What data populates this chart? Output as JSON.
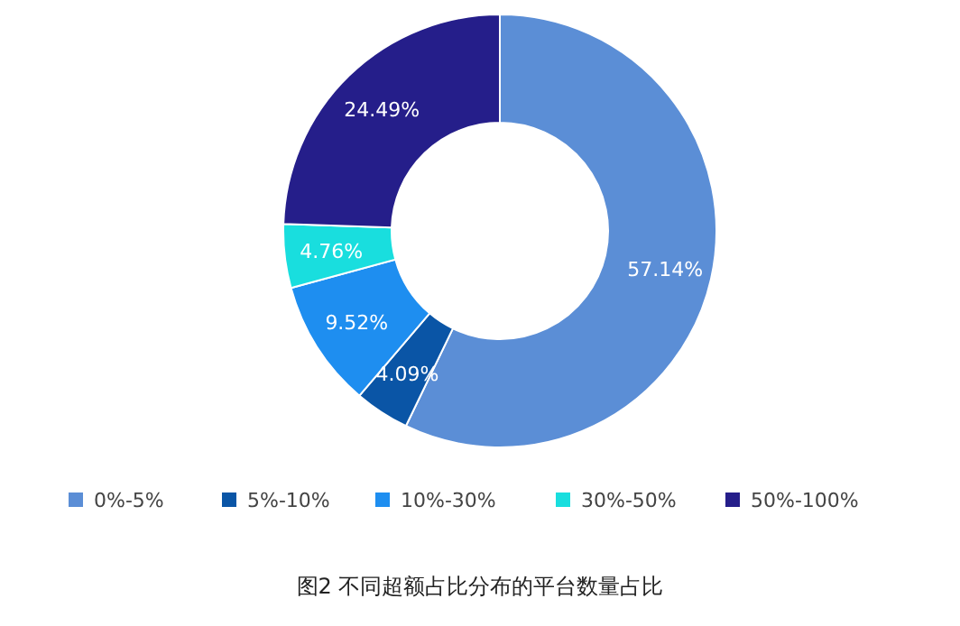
{
  "chart_data": {
    "type": "donut",
    "title": "图2 不同超额占比分布的平台数量占比",
    "categories": [
      "0%-5%",
      "5%-10%",
      "10%-30%",
      "30%-50%",
      "50%-100%"
    ],
    "values": [
      57.14,
      4.09,
      9.52,
      4.76,
      24.49
    ],
    "value_labels": [
      "57.14%",
      "4.09%",
      "9.52%",
      "4.76%",
      "24.49%"
    ],
    "colors": [
      "#5b8ed6",
      "#0a55a6",
      "#1e8ef0",
      "#19dede",
      "#251e8a"
    ],
    "legend": "bottom"
  }
}
